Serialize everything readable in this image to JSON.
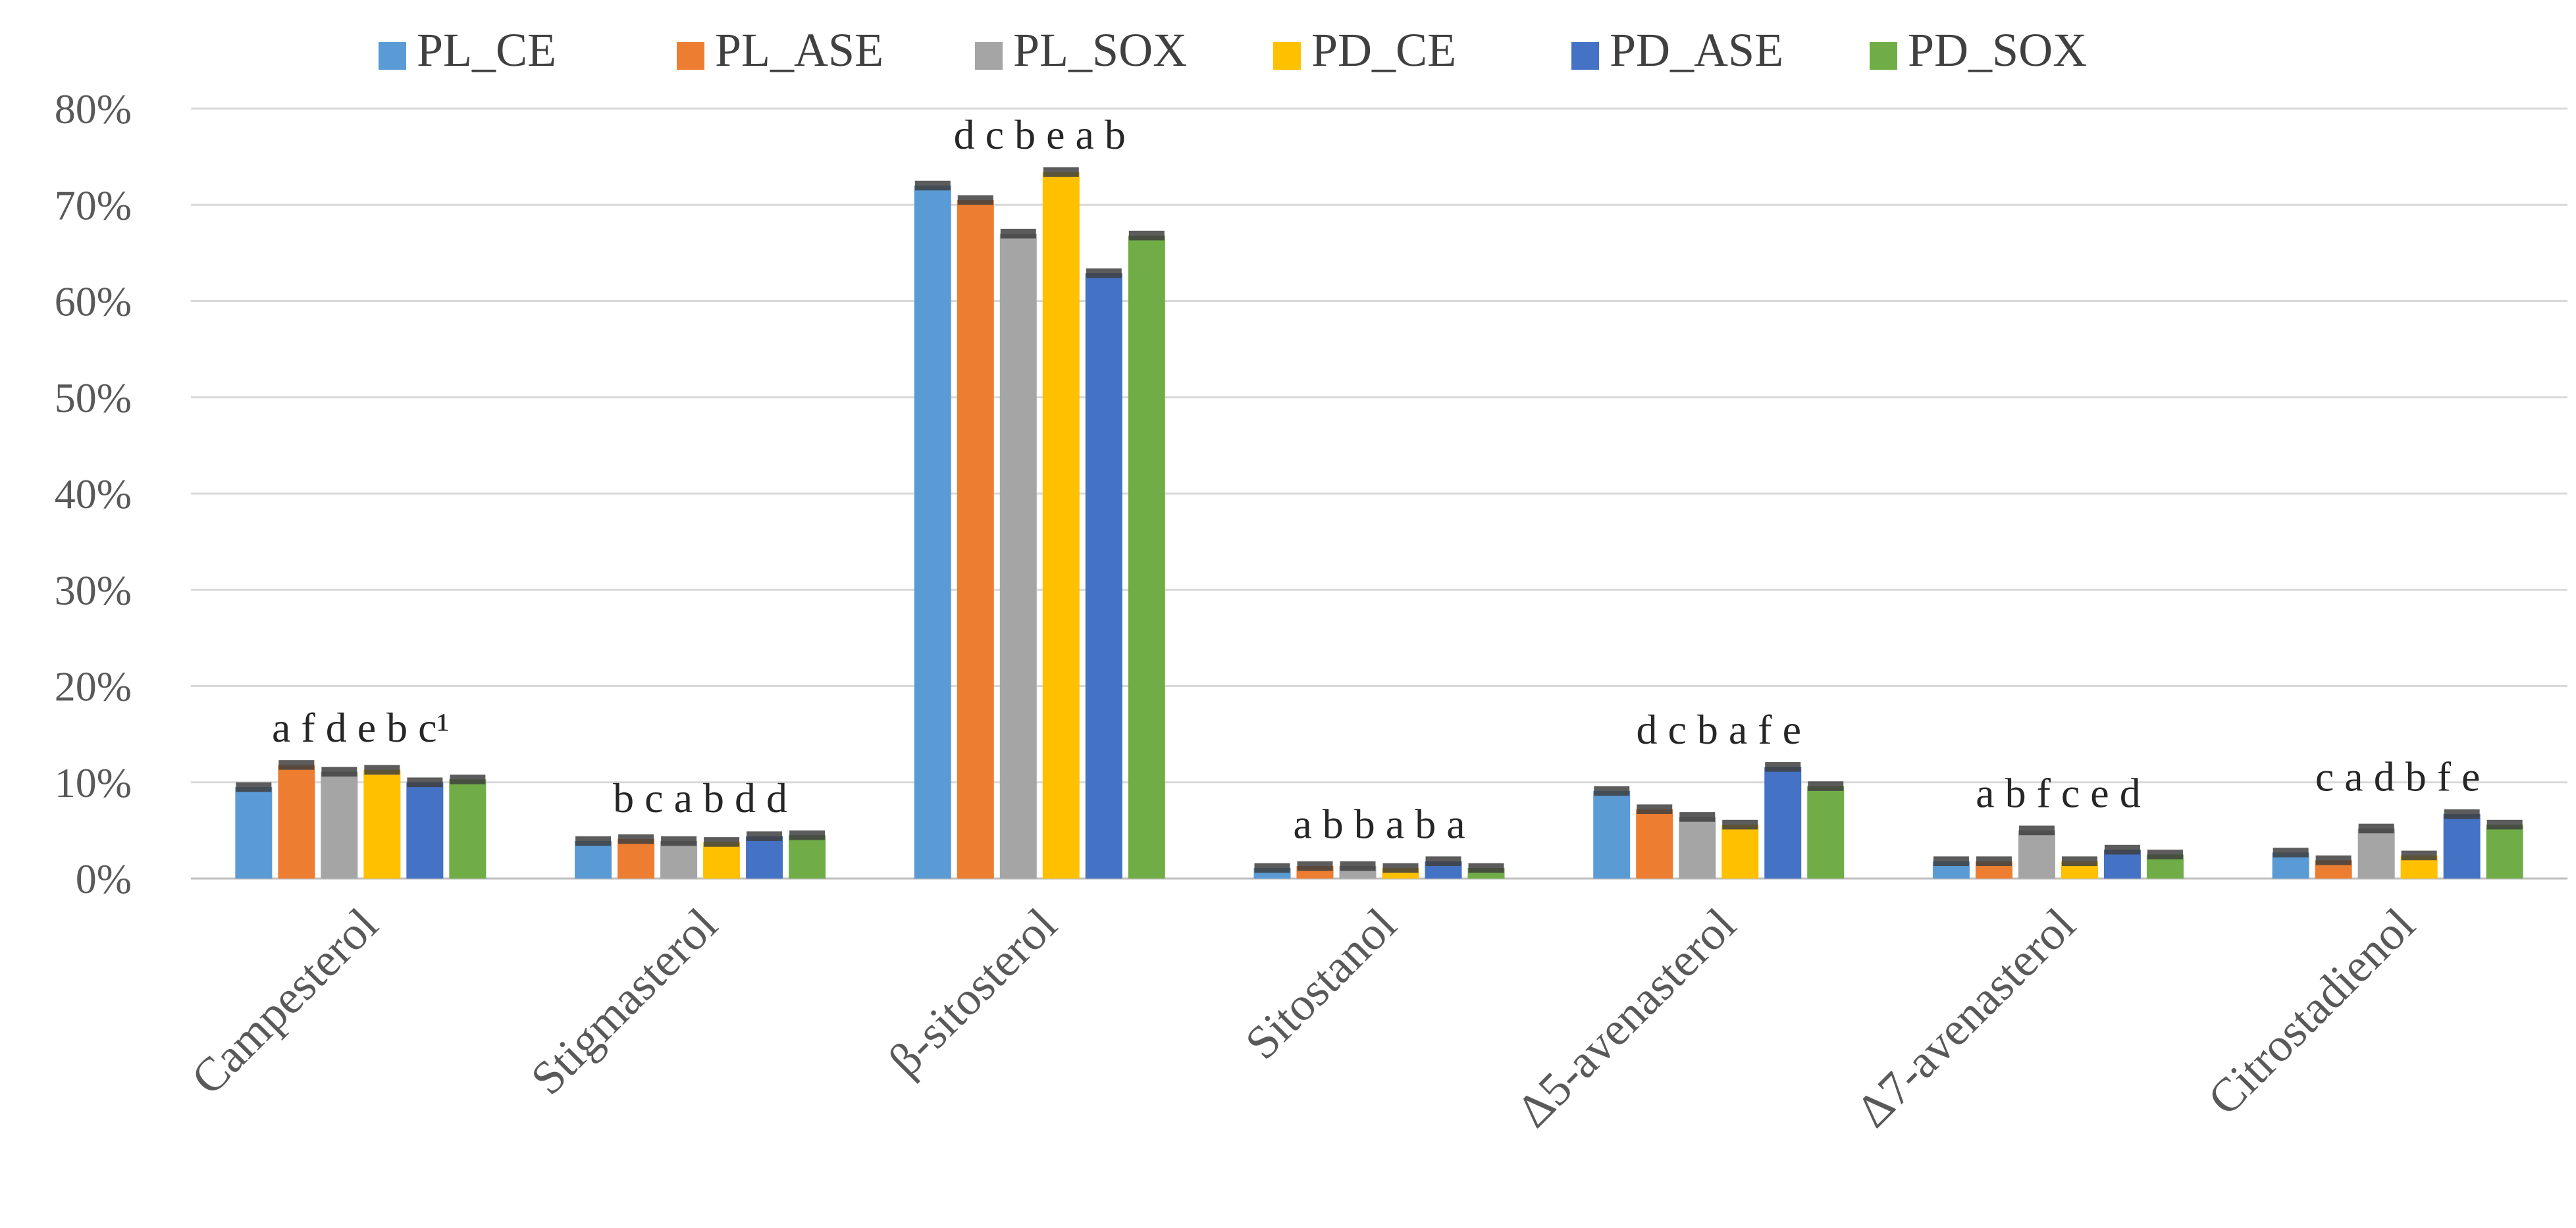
{
  "chart_data": {
    "type": "bar",
    "title": "",
    "xlabel": "",
    "ylabel": "",
    "ylim": [
      0,
      80
    ],
    "y_ticks": [
      "0%",
      "10%",
      "20%",
      "30%",
      "40%",
      "50%",
      "60%",
      "70%",
      "80%"
    ],
    "y_tick_values": [
      0,
      10,
      20,
      30,
      40,
      50,
      60,
      70,
      80
    ],
    "grid": true,
    "legend_position": "top",
    "categories": [
      "Campesterol",
      "Stigmasterol",
      "β-sitosterol",
      "Sitostanol",
      "Δ5-avenasterol",
      "Δ7-avenasterol",
      "Citrostadienol"
    ],
    "series": [
      {
        "name": "PL_CE",
        "color": "#5B9BD5",
        "values": [
          9.5,
          3.9,
          72.0,
          1.1,
          9.1,
          1.8,
          2.7
        ]
      },
      {
        "name": "PL_ASE",
        "color": "#ED7D31",
        "values": [
          11.8,
          4.1,
          70.5,
          1.3,
          7.2,
          1.8,
          1.9
        ]
      },
      {
        "name": "PL_SOX",
        "color": "#A5A5A5",
        "values": [
          11.1,
          3.9,
          67.0,
          1.3,
          6.4,
          5.0,
          5.2
        ]
      },
      {
        "name": "PD_CE",
        "color": "#FFC000",
        "values": [
          11.3,
          3.8,
          73.4,
          1.1,
          5.6,
          1.8,
          2.4
        ]
      },
      {
        "name": "PD_ASE",
        "color": "#4472C4",
        "values": [
          10.0,
          4.4,
          62.9,
          1.8,
          11.6,
          3.0,
          6.7
        ]
      },
      {
        "name": "PD_SOX",
        "color": "#70AD47",
        "values": [
          10.3,
          4.5,
          66.8,
          1.1,
          9.6,
          2.5,
          5.6
        ]
      }
    ],
    "error_bar": 0.5,
    "significance_labels": [
      "a f d e b c¹",
      "b c a b d d",
      "d c b e a b",
      "a b b a b a",
      "d c b a f e",
      "a b f c e d",
      "c a d b f e"
    ]
  }
}
